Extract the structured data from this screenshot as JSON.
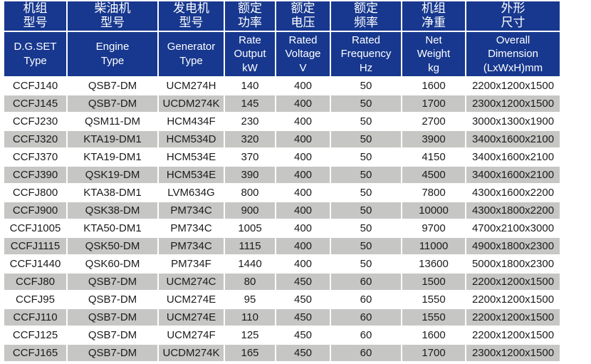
{
  "colors": {
    "header_bg": "#17388e",
    "row_alt_bg": "#c6c6c4",
    "row_bg": "#ffffff",
    "header_text": "#ffffff",
    "cell_text": "#1b1b1b"
  },
  "table": {
    "columns": [
      {
        "zh": "机组\n型号",
        "en": "D.G.SET\nType"
      },
      {
        "zh": "柴油机\n型号",
        "en": "Engine\nType"
      },
      {
        "zh": "发电机\n型号",
        "en": "Generator\nType"
      },
      {
        "zh": "额定\n功率",
        "en": "Rate\nOutput\nkW"
      },
      {
        "zh": "额定\n电压",
        "en": "Rated\nVoltage\nV"
      },
      {
        "zh": "额定\n频率",
        "en": "Rated\nFrequency\nHz"
      },
      {
        "zh": "机组\n净重",
        "en": "Net\nWeight\nkg"
      },
      {
        "zh": "外形\n尺寸",
        "en": "Overall\nDimension\n(LxWxH)mm"
      }
    ],
    "rows": [
      [
        "CCFJ140",
        "QSB7-DM",
        "UCM274H",
        "140",
        "400",
        "50",
        "1600",
        "2200x1200x1500"
      ],
      [
        "CCFJ145",
        "QSB7-DM",
        "UCDM274K",
        "145",
        "400",
        "50",
        "1700",
        "2300x1200x1500"
      ],
      [
        "CCFJ230",
        "QSM11-DM",
        "HCM434F",
        "230",
        "400",
        "50",
        "2700",
        "3000x1300x1900"
      ],
      [
        "CCFJ320",
        "KTA19-DM1",
        "HCM534D",
        "320",
        "400",
        "50",
        "3900",
        "3400x1600x2100"
      ],
      [
        "CCFJ370",
        "KTA19-DM1",
        "HCM534E",
        "370",
        "400",
        "50",
        "4150",
        "3400x1600x2100"
      ],
      [
        "CCFJ390",
        "QSK19-DM",
        "HCM534E",
        "390",
        "400",
        "50",
        "4500",
        "3400x1600x2100"
      ],
      [
        "CCFJ800",
        "KTA38-DM1",
        "LVM634G",
        "800",
        "400",
        "50",
        "7800",
        "4300x1600x2200"
      ],
      [
        "CCFJ900",
        "QSK38-DM",
        "PM734C",
        "900",
        "400",
        "50",
        "10000",
        "4300x1800x2200"
      ],
      [
        "CCFJ1005",
        "KTA50-DM1",
        "PM734C",
        "1005",
        "400",
        "50",
        "9700",
        "4700x2100x3000"
      ],
      [
        "CCFJ1115",
        "QSK50-DM",
        "PM734C",
        "1115",
        "400",
        "50",
        "11000",
        "4900x1800x2300"
      ],
      [
        "CCFJ1440",
        "QSK60-DM",
        "PM734F",
        "1440",
        "400",
        "50",
        "13600",
        "5000x1800x2300"
      ],
      [
        "CCFJ80",
        "QSB7-DM",
        "UCM274C",
        "80",
        "450",
        "60",
        "1500",
        "2200x1200x1500"
      ],
      [
        "CCFJ95",
        "QSB7-DM",
        "UCM274E",
        "95",
        "450",
        "60",
        "1550",
        "2200x1200x1500"
      ],
      [
        "CCFJ110",
        "QSB7-DM",
        "UCM274E",
        "110",
        "450",
        "60",
        "1550",
        "2200x1200x1500"
      ],
      [
        "CCFJ125",
        "QSB7-DM",
        "UCM274F",
        "125",
        "450",
        "60",
        "1600",
        "2200x1200x1500"
      ],
      [
        "CCFJ165",
        "QSB7-DM",
        "UCDM274K",
        "165",
        "450",
        "60",
        "1700",
        "2300x1200x1500"
      ]
    ]
  }
}
